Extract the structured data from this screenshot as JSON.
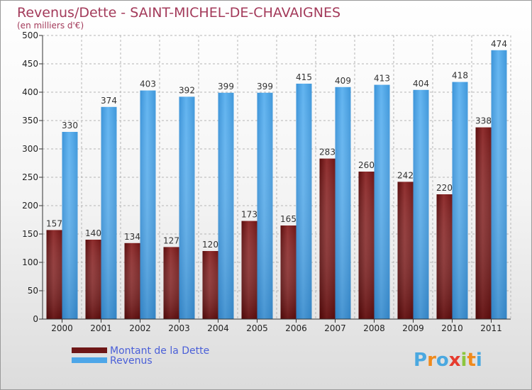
{
  "chart_data": {
    "type": "bar",
    "title": "Revenus/Dette - SAINT-MICHEL-DE-CHAVAIGNES",
    "subtitle": "(en milliers d'€)",
    "categories": [
      "2000",
      "2001",
      "2002",
      "2003",
      "2004",
      "2005",
      "2006",
      "2007",
      "2008",
      "2009",
      "2010",
      "2011"
    ],
    "series": [
      {
        "name": "Montant de la Dette",
        "values": [
          157,
          140,
          134,
          127,
          120,
          173,
          165,
          283,
          260,
          242,
          220,
          338
        ],
        "color": "#8b2a2a"
      },
      {
        "name": "Revenus",
        "values": [
          330,
          374,
          403,
          392,
          399,
          399,
          415,
          409,
          413,
          404,
          418,
          474
        ],
        "color": "#4da6e8"
      }
    ],
    "yticks": [
      0,
      50,
      100,
      150,
      200,
      250,
      300,
      350,
      400,
      450,
      500
    ],
    "ylim": [
      0,
      500
    ],
    "grid": true,
    "legend_position": "bottom-left"
  },
  "brand": {
    "letters": [
      "P",
      "r",
      "o",
      "x",
      "i",
      "t",
      "i"
    ],
    "colors": [
      "#4aa8e0",
      "#f08a1c",
      "#4aa8e0",
      "#e63b2e",
      "#8cc63f",
      "#f08a1c",
      "#4aa8e0"
    ]
  }
}
